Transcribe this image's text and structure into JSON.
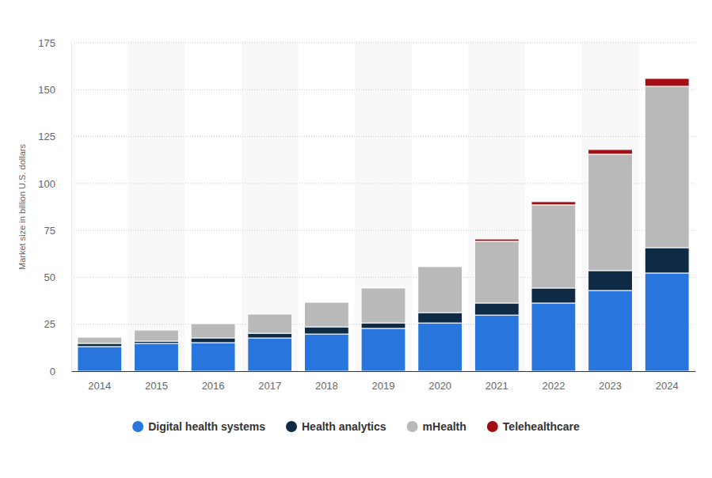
{
  "chart_data": {
    "type": "bar",
    "stacked": true,
    "grid": true,
    "legend": "bottom",
    "ylabel": "Market size in billion U.S. dollars",
    "categories": [
      "2014",
      "2015",
      "2016",
      "2017",
      "2018",
      "2019",
      "2020",
      "2021",
      "2022",
      "2023",
      "2024"
    ],
    "series": [
      {
        "name": "Digital health systems",
        "color": "#2876dd",
        "values": [
          13.1,
          14.8,
          15.2,
          17.7,
          19.8,
          22.8,
          25.7,
          29.9,
          36.3,
          43.0,
          52.3
        ]
      },
      {
        "name": "Health analytics",
        "color": "#0f2a44",
        "values": [
          1.7,
          1.2,
          2.5,
          2.5,
          3.8,
          2.9,
          5.5,
          6.4,
          8.0,
          10.6,
          13.5
        ]
      },
      {
        "name": "mHealth",
        "color": "#b9b9b9",
        "values": [
          3.3,
          5.9,
          7.6,
          10.2,
          13.1,
          18.6,
          24.5,
          32.9,
          44.3,
          62.0,
          86.0
        ]
      },
      {
        "name": "Telehealthcare",
        "color": "#a30e15",
        "values": [
          0,
          0,
          0,
          0,
          0,
          0,
          0,
          1.2,
          1.7,
          2.5,
          4.2
        ]
      }
    ],
    "ylim": [
      0,
      175
    ],
    "yticks": [
      0,
      25,
      50,
      75,
      100,
      125,
      150,
      175
    ]
  }
}
